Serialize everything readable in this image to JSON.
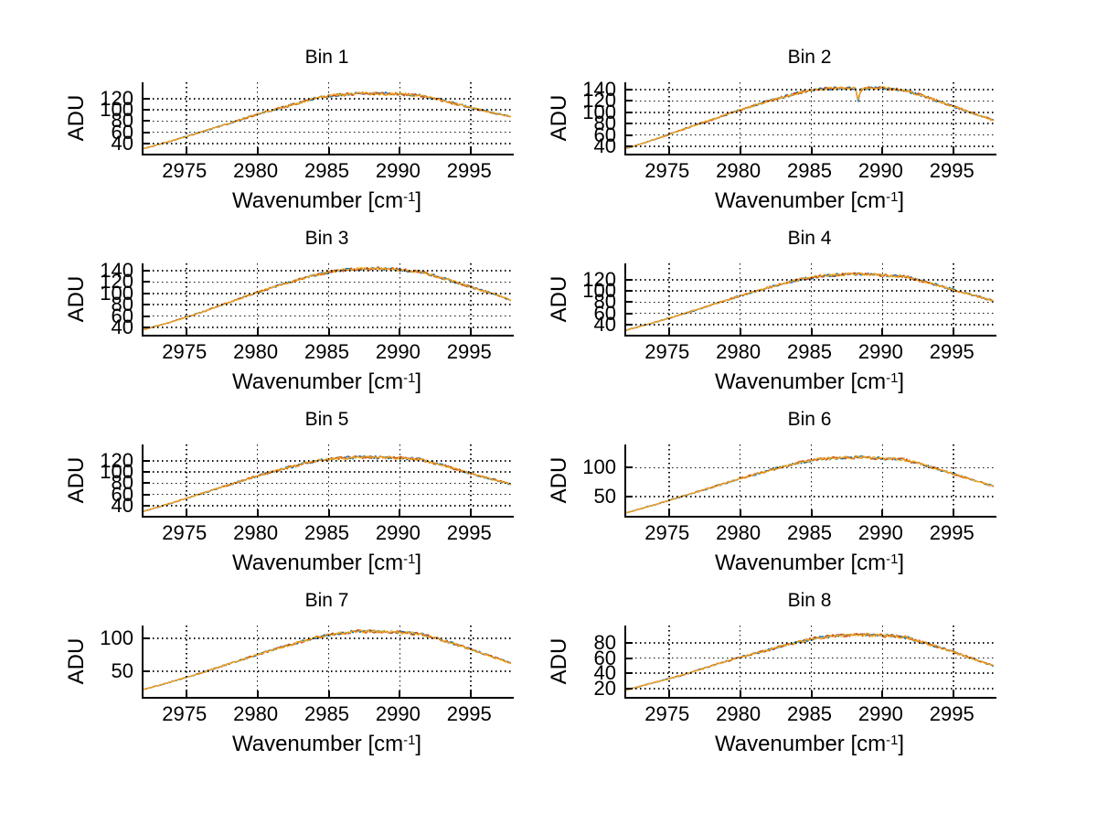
{
  "figure": {
    "background": "#ffffff",
    "text_color": "#000000"
  },
  "shared": {
    "xlabel": {
      "text": "Wavenumber [cm",
      "sup": "-1",
      "end": "]"
    },
    "ylabel": "ADU",
    "xticks": [
      2975,
      2980,
      2985,
      2990,
      2995
    ],
    "xlim": [
      2972,
      2998
    ],
    "grid": "dotted",
    "legend": "none",
    "series_colors": [
      "#0072BD",
      "#D95319",
      "#EDB120"
    ]
  },
  "chart_data": [
    {
      "type": "line",
      "title": "Bin 1",
      "xlabel": "Wavenumber [cm^-1]",
      "ylabel": "ADU",
      "yticks": [
        40,
        60,
        80,
        100,
        120
      ],
      "ylim": [
        22,
        149
      ],
      "noise": 2.8,
      "x": [
        2972,
        2974,
        2976,
        2978,
        2980,
        2982,
        2984,
        2985.5,
        2987,
        2988.5,
        2990,
        2991.5,
        2993,
        2995,
        2997,
        2997.8
      ],
      "y": [
        31,
        45,
        60,
        76,
        92,
        106,
        120,
        126,
        129,
        129,
        128,
        125,
        117,
        104,
        92,
        88
      ]
    },
    {
      "type": "line",
      "title": "Bin 2",
      "xlabel": "Wavenumber [cm^-1]",
      "ylabel": "ADU",
      "yticks": [
        40,
        60,
        80,
        100,
        120,
        140
      ],
      "ylim": [
        27,
        153
      ],
      "noise": 2.8,
      "spike": {
        "x": 2988.3,
        "depth": 22,
        "halfwidth": 0.22
      },
      "x": [
        2972,
        2974,
        2976,
        2978,
        2980,
        2982,
        2984,
        2985.5,
        2987,
        2988.5,
        2990,
        2991.5,
        2993,
        2995,
        2997,
        2997.8
      ],
      "y": [
        36,
        52,
        70,
        87,
        104,
        120,
        134,
        141,
        143,
        142,
        143,
        139,
        128,
        110,
        93,
        86
      ]
    },
    {
      "type": "line",
      "title": "Bin 3",
      "xlabel": "Wavenumber [cm^-1]",
      "ylabel": "ADU",
      "yticks": [
        40,
        60,
        80,
        100,
        120,
        140
      ],
      "ylim": [
        27,
        153
      ],
      "noise": 2.8,
      "x": [
        2972,
        2974,
        2976,
        2978,
        2980,
        2982,
        2984,
        2985.5,
        2987,
        2988.5,
        2990,
        2991.5,
        2993,
        2995,
        2997,
        2997.8
      ],
      "y": [
        36,
        50,
        66,
        84,
        102,
        118,
        132,
        140,
        143,
        144,
        142,
        138,
        127,
        111,
        96,
        88
      ]
    },
    {
      "type": "line",
      "title": "Bin 4",
      "xlabel": "Wavenumber [cm^-1]",
      "ylabel": "ADU",
      "yticks": [
        40,
        60,
        80,
        100,
        120
      ],
      "ylim": [
        22,
        149
      ],
      "noise": 2.8,
      "x": [
        2972,
        2974,
        2976,
        2978,
        2980,
        2982,
        2984,
        2985.5,
        2987,
        2988.5,
        2990,
        2991.5,
        2993,
        2995,
        2997,
        2997.8
      ],
      "y": [
        30,
        44,
        59,
        75,
        91,
        106,
        119,
        126,
        129,
        130,
        128,
        126,
        116,
        102,
        88,
        82
      ]
    },
    {
      "type": "line",
      "title": "Bin 5",
      "xlabel": "Wavenumber [cm^-1]",
      "ylabel": "ADU",
      "yticks": [
        40,
        60,
        80,
        100,
        120
      ],
      "ylim": [
        22,
        149
      ],
      "noise": 2.8,
      "x": [
        2972,
        2974,
        2976,
        2978,
        2980,
        2982,
        2984,
        2985.5,
        2987,
        2988.5,
        2990,
        2991.5,
        2993,
        2995,
        2997,
        2997.8
      ],
      "y": [
        30,
        45,
        61,
        77,
        93,
        107,
        119,
        124,
        126,
        126,
        125,
        122,
        112,
        97,
        84,
        78
      ]
    },
    {
      "type": "line",
      "title": "Bin 6",
      "xlabel": "Wavenumber [cm^-1]",
      "ylabel": "ADU",
      "yticks": [
        50,
        100
      ],
      "ylim": [
        17,
        140
      ],
      "noise": 2.6,
      "x": [
        2972,
        2974,
        2976,
        2978,
        2980,
        2982,
        2984,
        2985.5,
        2987,
        2988.5,
        2990,
        2991.5,
        2993,
        2995,
        2997,
        2997.8
      ],
      "y": [
        22,
        36,
        51,
        66,
        81,
        95,
        108,
        114,
        117,
        118,
        116,
        114,
        104,
        89,
        74,
        68
      ]
    },
    {
      "type": "line",
      "title": "Bin 7",
      "xlabel": "Wavenumber [cm^-1]",
      "ylabel": "ADU",
      "yticks": [
        50,
        100
      ],
      "ylim": [
        11,
        119
      ],
      "noise": 2.4,
      "x": [
        2972,
        2974,
        2976,
        2978,
        2980,
        2982,
        2984,
        2985.5,
        2987,
        2988.5,
        2990,
        2991.5,
        2993,
        2995,
        2997,
        2997.8
      ],
      "y": [
        22,
        34,
        47,
        61,
        75,
        88,
        100,
        107,
        110,
        110,
        109,
        106,
        97,
        83,
        68,
        62
      ]
    },
    {
      "type": "line",
      "title": "Bin 8",
      "xlabel": "Wavenumber [cm^-1]",
      "ylabel": "ADU",
      "yticks": [
        20,
        40,
        60,
        80
      ],
      "ylim": [
        9,
        103
      ],
      "noise": 2.2,
      "x": [
        2972,
        2974,
        2976,
        2978,
        2980,
        2982,
        2984,
        2985.5,
        2987,
        2988.5,
        2990,
        2991.5,
        2993,
        2995,
        2997,
        2997.8
      ],
      "y": [
        18,
        28,
        38,
        50,
        61,
        71,
        81,
        87,
        90,
        91,
        90,
        88,
        80,
        68,
        55,
        50
      ]
    }
  ]
}
